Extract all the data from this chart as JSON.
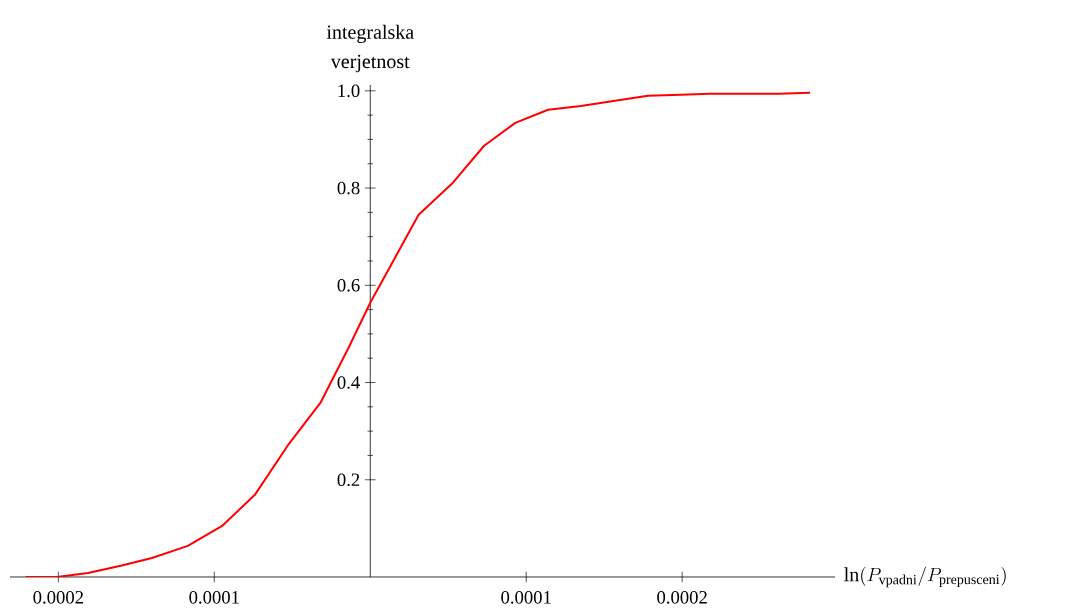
{
  "chart_data": {
    "type": "line",
    "xlabel": "\\ln(P_{\\mathrm{vpadni}}/P_{\\mathrm{prepusceni}})",
    "ylabel": "integralska verjetnost",
    "x": [
      -0.000221,
      -0.000201,
      -0.000181,
      -0.00016,
      -0.00014,
      -0.000117,
      -9.5e-05,
      -7.4e-05,
      -5.3e-05,
      -3.2e-05,
      -1.4e-05,
      0.0,
      3.1e-05,
      5.3e-05,
      7.3e-05,
      9.3e-05,
      0.000114,
      0.000135,
      0.000178,
      0.000199,
      0.000218,
      0.000262,
      0.000282
    ],
    "series": [
      {
        "color": "#ff0000",
        "values": [
          0,
          0,
          0.008,
          0.023,
          0.039,
          0.064,
          0.105,
          0.169,
          0.27,
          0.358,
          0.471,
          0.564,
          0.745,
          0.811,
          0.887,
          0.934,
          0.961,
          0.969,
          0.99,
          0.992,
          0.994,
          0.994,
          0.996
        ]
      }
    ],
    "xlim": [
      -0.000231,
      0.000298
    ],
    "ylim": [
      0,
      1.012
    ],
    "xticks": [
      {
        "value": -0.0002,
        "label": "0.0002"
      },
      {
        "value": -0.0001,
        "label": "0.0001"
      },
      {
        "value": 0.0001,
        "label": "0.0001"
      },
      {
        "value": 0.0002,
        "label": "0.0002"
      }
    ],
    "yticks": [
      0.2,
      0.4,
      0.6,
      0.8,
      {
        "value": 1.0,
        "label": "1.0"
      }
    ],
    "grid": false,
    "marker": "none",
    "line_style": "solid"
  }
}
